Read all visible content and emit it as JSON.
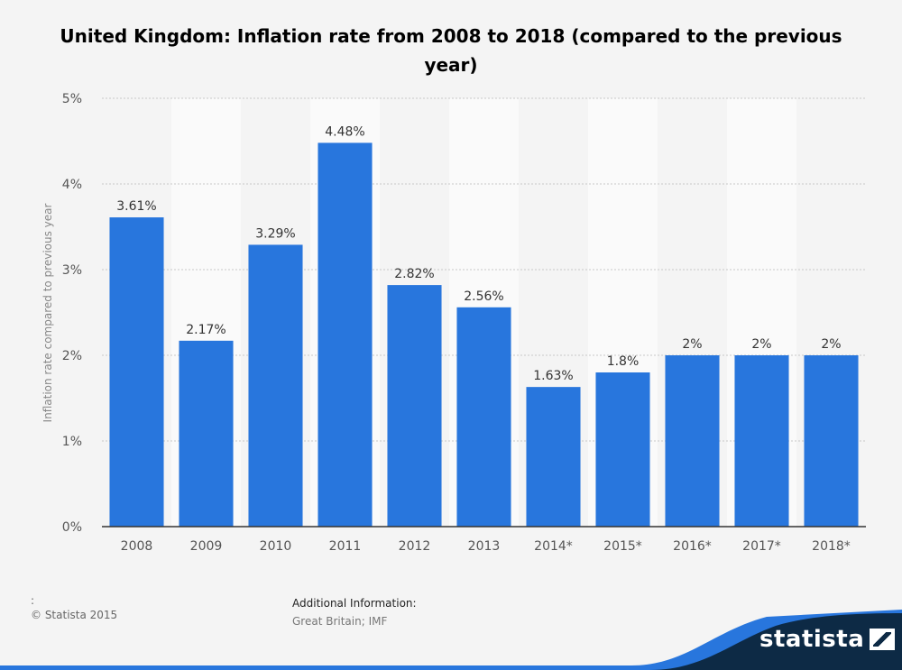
{
  "chart_data": {
    "type": "bar",
    "title": "United Kingdom: Inflation rate from 2008 to 2018 (compared to the previous year)",
    "categories": [
      "2008",
      "2009",
      "2010",
      "2011",
      "2012",
      "2013",
      "2014*",
      "2015*",
      "2016*",
      "2017*",
      "2018*"
    ],
    "values": [
      3.61,
      2.17,
      3.29,
      4.48,
      2.82,
      2.56,
      1.63,
      1.8,
      2,
      2,
      2
    ],
    "value_labels": [
      "3.61%",
      "2.17%",
      "3.29%",
      "4.48%",
      "2.82%",
      "2.56%",
      "1.63%",
      "1.8%",
      "2%",
      "2%",
      "2%"
    ],
    "xlabel": "",
    "ylabel": "Inflation rate compared to previous year",
    "ylim": [
      0,
      5
    ],
    "yticks": [
      0,
      1,
      2,
      3,
      4,
      5
    ],
    "ytick_labels": [
      "0%",
      "1%",
      "2%",
      "3%",
      "4%",
      "5%"
    ],
    "grid": true,
    "bar_color": "#2876dd"
  },
  "footer": {
    "colon": ":",
    "copyright": "© Statista 2015",
    "info_title": "Additional Information:",
    "info_text": "Great Britain; IMF"
  },
  "brand": {
    "name": "statista",
    "wave_color": "#0d2a45",
    "wave_accent": "#2876dd"
  }
}
